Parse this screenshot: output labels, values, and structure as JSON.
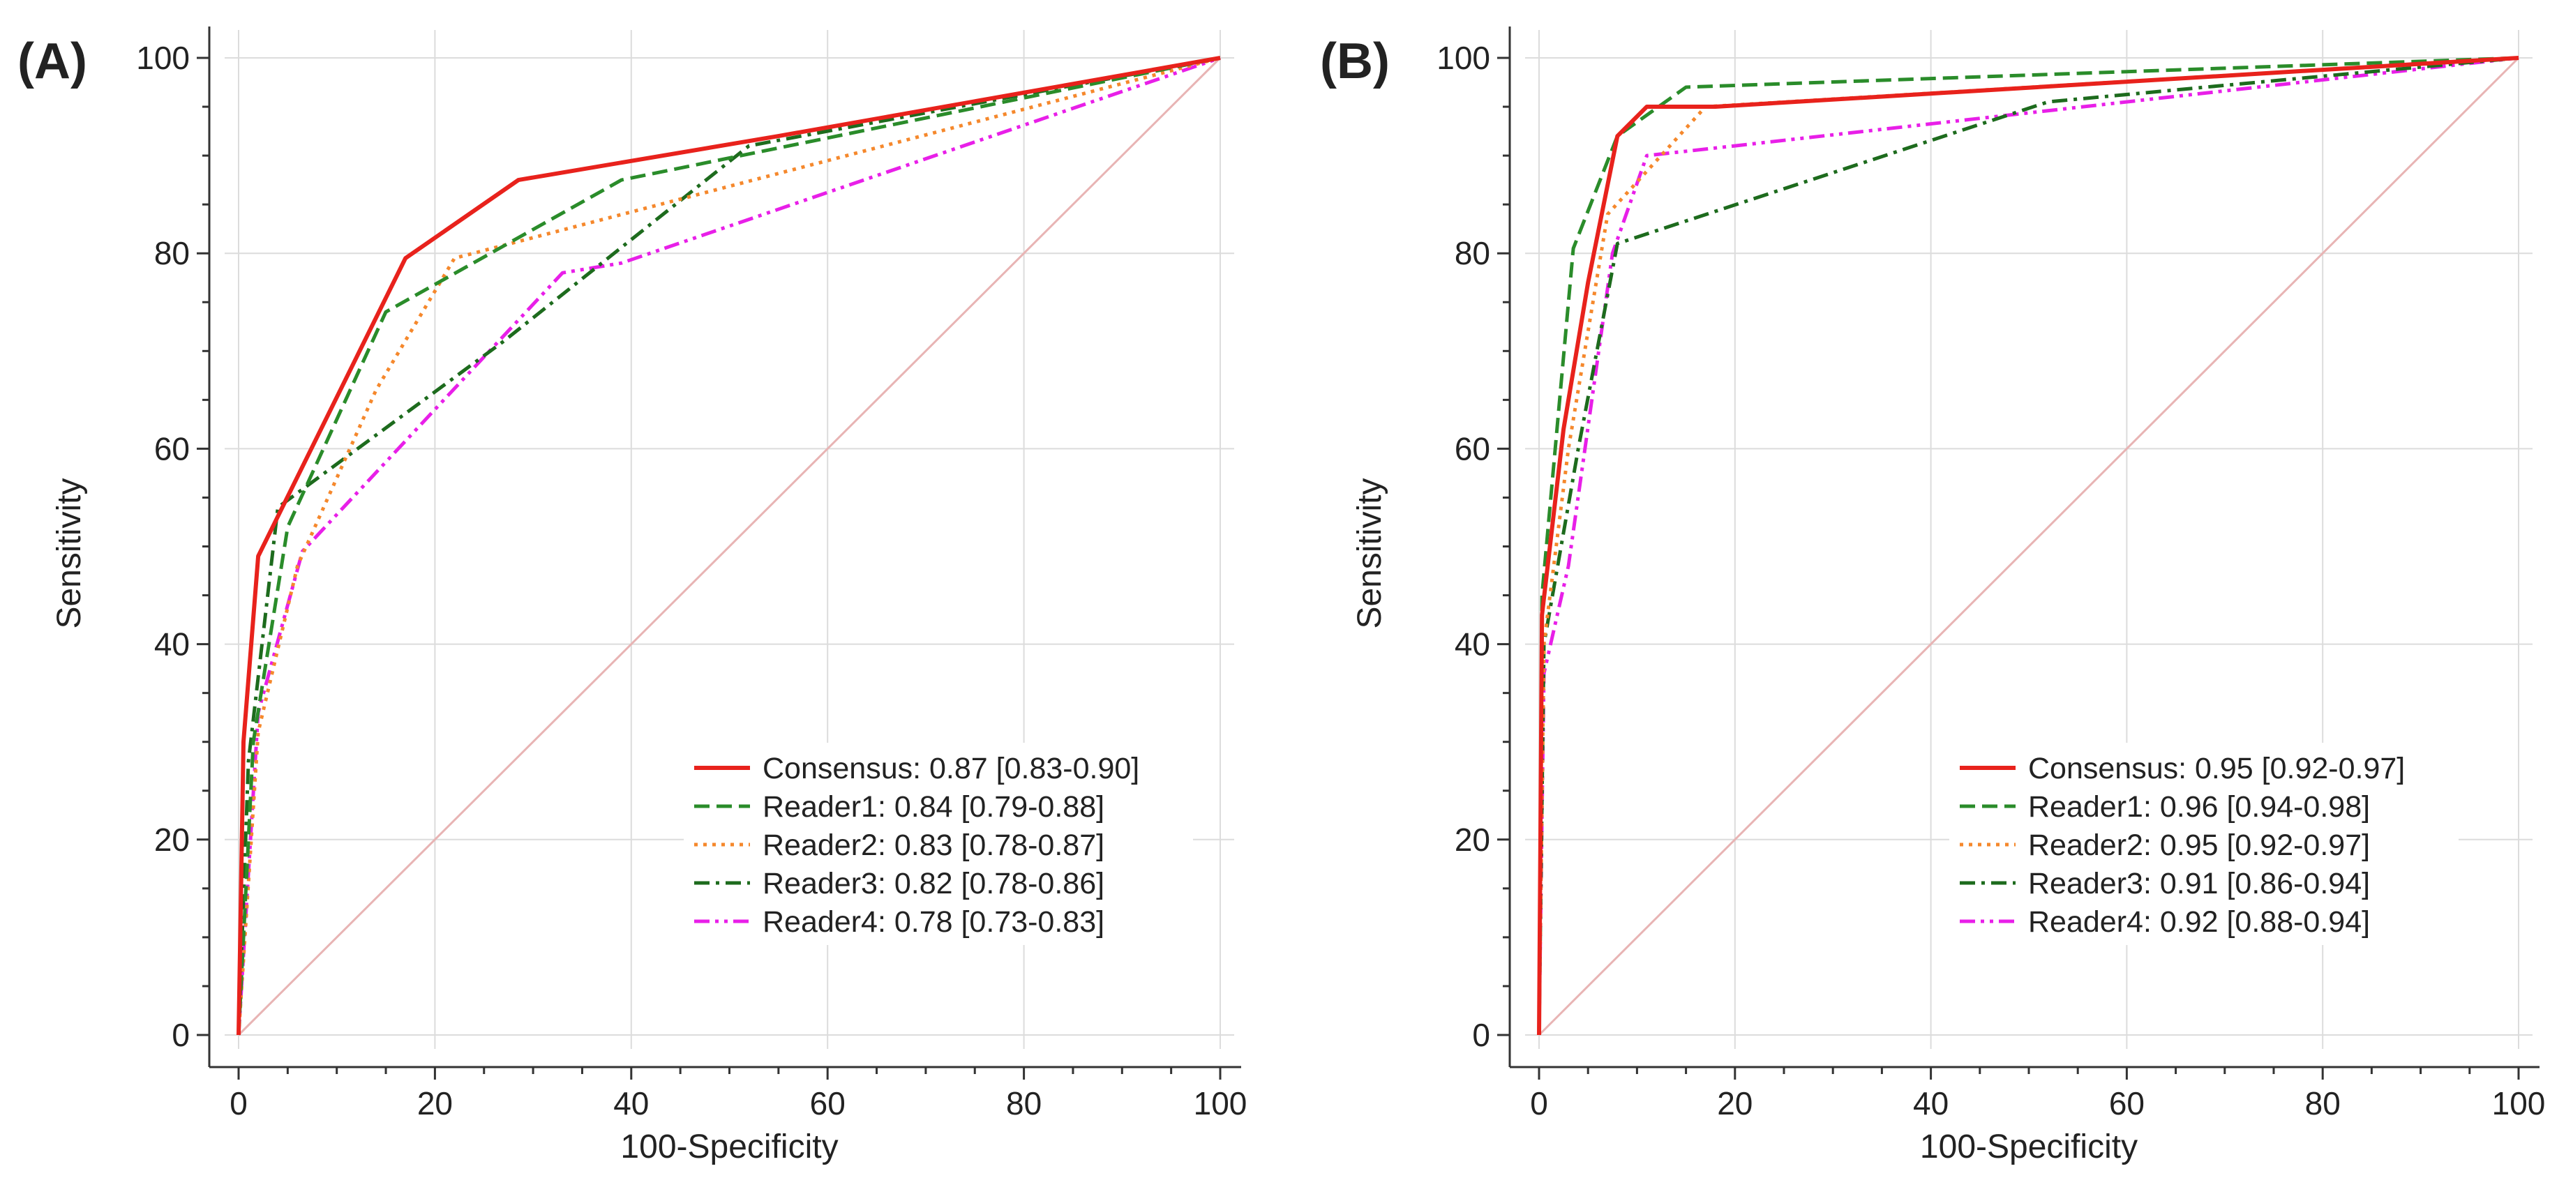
{
  "chart_data": [
    {
      "panel": "(A)",
      "type": "line",
      "xlabel": "100-Specificity",
      "ylabel": "Sensitivity",
      "xlim": [
        0,
        100
      ],
      "ylim": [
        0,
        100
      ],
      "xticks": [
        "0",
        "20",
        "40",
        "60",
        "80",
        "100"
      ],
      "yticks": [
        "0",
        "20",
        "40",
        "60",
        "80",
        "100"
      ],
      "grid": true,
      "legend_position": "bottom-right",
      "reference_line": {
        "x": [
          0,
          100
        ],
        "y": [
          0,
          100
        ],
        "color": "#e8b4b4"
      },
      "series": [
        {
          "name": "Consensus",
          "legend": "Consensus: 0.87 [0.83-0.90]",
          "color": "#e8221c",
          "dash": "solid",
          "x": [
            0,
            0.5,
            2,
            17,
            28.5,
            55,
            100
          ],
          "y": [
            0,
            30,
            49,
            79.5,
            87.5,
            92,
            100
          ]
        },
        {
          "name": "Reader1",
          "legend": "Reader1: 0.84 [0.79-0.88]",
          "color": "#2a8c2a",
          "dash": "dash",
          "x": [
            0,
            1.5,
            5,
            15,
            39,
            100
          ],
          "y": [
            0,
            30,
            52,
            74,
            87.5,
            100
          ]
        },
        {
          "name": "Reader2",
          "legend": "Reader2: 0.83 [0.78-0.87]",
          "color": "#f5882c",
          "dash": "dot",
          "x": [
            0,
            2,
            6,
            14,
            22,
            100
          ],
          "y": [
            0,
            31,
            48,
            66,
            79.5,
            100
          ]
        },
        {
          "name": "Reader3",
          "legend": "Reader3: 0.82 [0.78-0.86]",
          "color": "#1d6b1d",
          "dash": "dashdot",
          "x": [
            0,
            1,
            4,
            27,
            52,
            100
          ],
          "y": [
            0,
            28,
            54,
            71,
            91,
            100
          ]
        },
        {
          "name": "Reader4",
          "legend": "Reader4: 0.78 [0.73-0.83]",
          "color": "#e81fe8",
          "dash": "dashdotdot",
          "x": [
            0,
            2,
            6.5,
            33,
            39,
            100
          ],
          "y": [
            0,
            33,
            49.5,
            78,
            79,
            100
          ]
        }
      ]
    },
    {
      "panel": "(B)",
      "type": "line",
      "xlabel": "100-Specificity",
      "ylabel": "Sensitivity",
      "xlim": [
        0,
        100
      ],
      "ylim": [
        0,
        100
      ],
      "xticks": [
        "0",
        "20",
        "40",
        "60",
        "80",
        "100"
      ],
      "yticks": [
        "0",
        "20",
        "40",
        "60",
        "80",
        "100"
      ],
      "grid": true,
      "legend_position": "bottom-right",
      "reference_line": {
        "x": [
          0,
          100
        ],
        "y": [
          0,
          100
        ],
        "color": "#e8b4b4"
      },
      "series": [
        {
          "name": "Consensus",
          "legend": "Consensus: 0.95 [0.92-0.97]",
          "color": "#e8221c",
          "dash": "solid",
          "x": [
            0,
            0.3,
            2.5,
            5,
            8,
            11,
            18,
            100
          ],
          "y": [
            0,
            43,
            62,
            77,
            92,
            95,
            95,
            100
          ]
        },
        {
          "name": "Reader1",
          "legend": "Reader1: 0.96 [0.94-0.98]",
          "color": "#2a8c2a",
          "dash": "dash",
          "x": [
            0,
            0.3,
            3.5,
            8,
            15,
            100
          ],
          "y": [
            0,
            45,
            80.5,
            92,
            97,
            100
          ]
        },
        {
          "name": "Reader2",
          "legend": "Reader2: 0.95 [0.92-0.97]",
          "color": "#f5882c",
          "dash": "dot",
          "x": [
            0,
            0.5,
            3,
            7,
            17,
            100
          ],
          "y": [
            0,
            40,
            60,
            84,
            95,
            100
          ]
        },
        {
          "name": "Reader3",
          "legend": "Reader3: 0.91 [0.86-0.94]",
          "color": "#1d6b1d",
          "dash": "dashdot",
          "x": [
            0,
            0.5,
            4,
            8,
            52,
            100
          ],
          "y": [
            0,
            40,
            60,
            81,
            95.5,
            100
          ]
        },
        {
          "name": "Reader4",
          "legend": "Reader4: 0.92 [0.88-0.94]",
          "color": "#e81fe8",
          "dash": "dashdotdot",
          "x": [
            0,
            0.5,
            3,
            7.5,
            11,
            20,
            100
          ],
          "y": [
            0,
            37,
            48,
            80,
            90,
            91,
            100
          ]
        }
      ]
    }
  ]
}
